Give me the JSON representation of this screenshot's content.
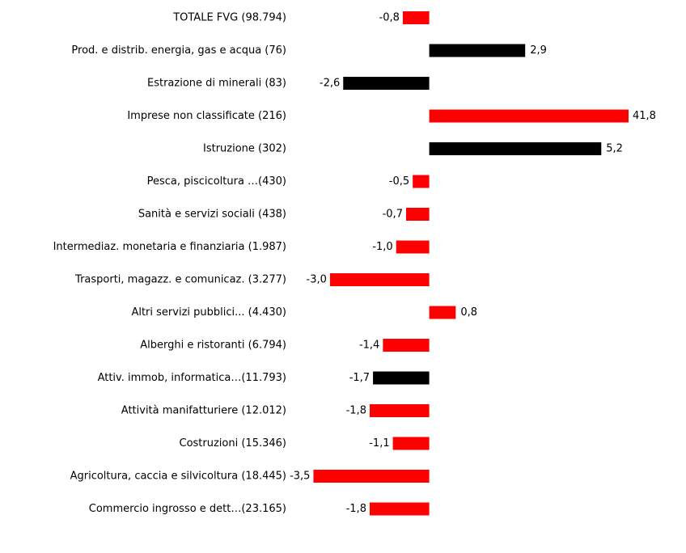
{
  "chart_data": {
    "type": "barh",
    "categories": [
      "TOTALE FVG (98.794)",
      "Prod. e distrib. energia, gas e acqua (76)",
      "Estrazione di minerali (83)",
      "Imprese non classificate (216)",
      "Istruzione (302)",
      "Pesca, piscicoltura …(430)",
      "Sanità e servizi sociali (438)",
      "Intermediaz. monetaria e finanziaria (1.987)",
      "Trasporti, magazz. e comunicaz. (3.277)",
      "Altri servizi pubblici... (4.430)",
      "Alberghi e ristoranti (6.794)",
      "Attiv. immob, informatica…(11.793)",
      "Attività manifatturiere (12.012)",
      "Costruzioni (15.346)",
      "Agricoltura, caccia e silvicoltura (18.445)",
      "Commercio ingrosso e dett…(23.165)"
    ],
    "values": [
      -0.8,
      2.9,
      -2.6,
      41.8,
      5.2,
      -0.5,
      -0.7,
      -1.0,
      -3.0,
      0.8,
      -1.4,
      -1.7,
      -1.8,
      -1.1,
      -3.5,
      -1.8
    ],
    "value_labels": [
      "-0,8",
      "2,9",
      "-2,6",
      "41,8",
      "5,2",
      "-0,5",
      "-0,7",
      "-1,0",
      "-3,0",
      "0,8",
      "-1,4",
      "-1,7",
      "-1,8",
      "-1,1",
      "-3,5",
      "-1,8"
    ],
    "colors": [
      "#ff0000",
      "#000000",
      "#000000",
      "#ff0000",
      "#000000",
      "#ff0000",
      "#ff0000",
      "#ff0000",
      "#ff0000",
      "#ff0000",
      "#ff0000",
      "#000000",
      "#ff0000",
      "#ff0000",
      "#ff0000",
      "#ff0000"
    ],
    "xlim": [
      -4,
      6
    ],
    "xticks": [
      -4,
      -2,
      0,
      2,
      4,
      6
    ],
    "grid": true
  }
}
